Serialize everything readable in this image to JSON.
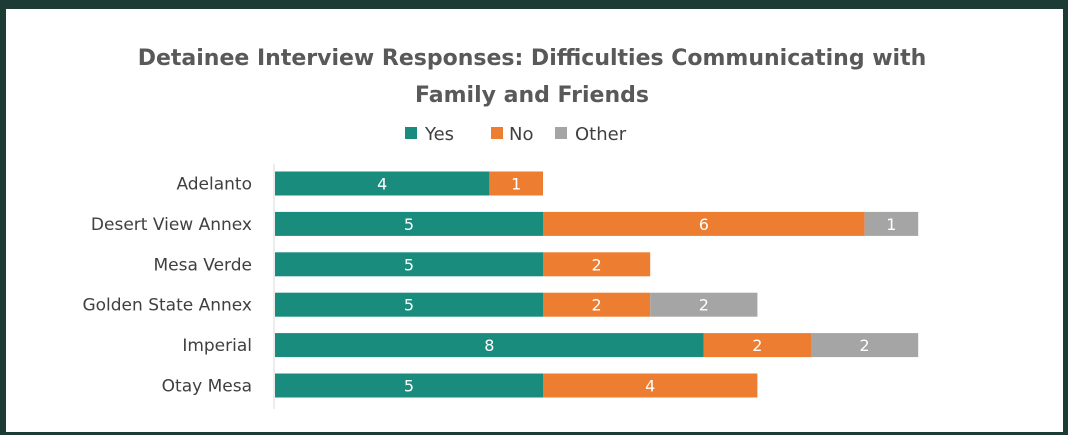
{
  "chart_data": {
    "type": "bar",
    "orientation": "horizontal",
    "stacked": true,
    "title": "Detainee Interview Responses: Difficulties Communicating with Family and Friends",
    "title_lines": [
      "Detainee Interview Responses: Difficulties Communicating with",
      "Family and Friends"
    ],
    "categories": [
      "Adelanto",
      "Desert View Annex",
      "Mesa Verde",
      "Golden State Annex",
      "Imperial",
      "Otay Mesa"
    ],
    "series": [
      {
        "name": "Yes",
        "color": "#1a8c7e",
        "values": [
          4,
          5,
          5,
          5,
          8,
          5
        ]
      },
      {
        "name": "No",
        "color": "#ed7d31",
        "values": [
          1,
          6,
          2,
          2,
          2,
          4
        ]
      },
      {
        "name": "Other",
        "color": "#a5a5a5",
        "values": [
          null,
          1,
          null,
          2,
          2,
          null
        ]
      }
    ],
    "legend_position": "top",
    "grid": false,
    "xlim": [
      0,
      12
    ]
  }
}
